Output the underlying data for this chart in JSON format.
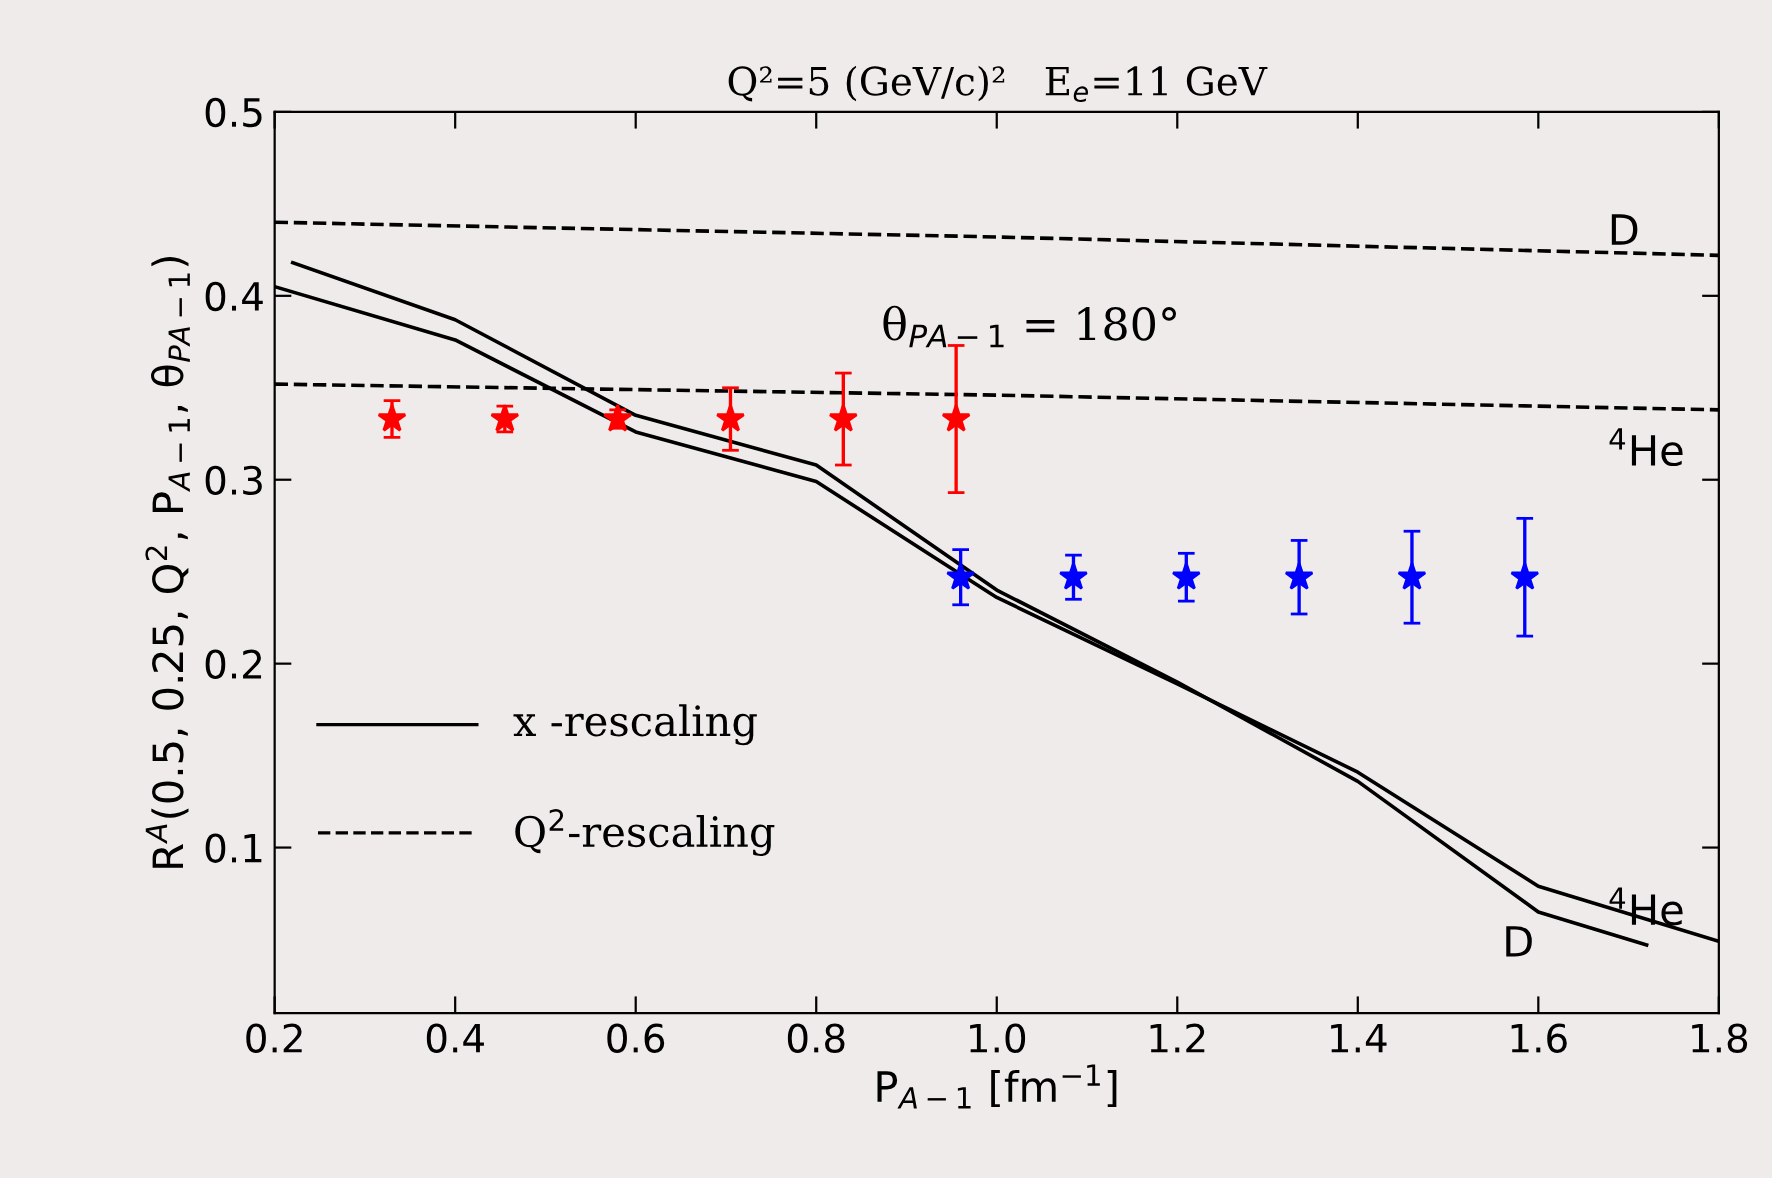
{
  "chart_data": {
    "type": "line",
    "title": "Q²=5 (GeV/c)²   E$_{e}$=11 GeV",
    "xlabel": "P$_{A−1}$ [fm$^{−1}$]",
    "ylabel": "R$^{A}$(0.5, 0.25, Q$^{2}$, P$_{A−1}$, θ$_{PA−1}$)",
    "xlim": [
      0.2,
      1.8
    ],
    "xticks": [
      0.2,
      0.4,
      0.6,
      0.8,
      {
        "value": 1.0,
        "label": "1.0"
      },
      1.2,
      1.4,
      1.6,
      1.8
    ],
    "ylim": [
      0.01,
      0.5
    ],
    "yticks": [
      0.1,
      0.2,
      0.3,
      0.4,
      0.5
    ],
    "grid": false,
    "series": [
      {
        "name": "D",
        "line_style": "solid",
        "color": "#000000",
        "x": [
          0.22,
          0.4,
          0.6,
          0.8,
          1.0,
          1.2,
          1.4,
          1.6,
          1.72
        ],
        "values": [
          0.418,
          0.387,
          0.335,
          0.308,
          0.24,
          0.19,
          0.136,
          0.065,
          0.047
        ]
      },
      {
        "name": "$^{4}$He",
        "line_style": "solid",
        "color": "#000000",
        "x": [
          0.2,
          0.4,
          0.6,
          0.8,
          1.0,
          1.2,
          1.4,
          1.6,
          1.8
        ],
        "values": [
          0.405,
          0.376,
          0.326,
          0.299,
          0.236,
          0.189,
          0.141,
          0.079,
          0.049
        ]
      },
      {
        "name": "D",
        "line_style": "dashed",
        "color": "#000000",
        "x": [
          0.2,
          1.0,
          1.8
        ],
        "values": [
          0.44,
          0.432,
          0.422
        ]
      },
      {
        "name": "$^{4}$He",
        "line_style": "dashed",
        "color": "#000000",
        "x": [
          0.2,
          1.0,
          1.8
        ],
        "values": [
          0.352,
          0.346,
          0.338
        ]
      },
      {
        "type": "scatter",
        "marker": "star",
        "color": "#ff0000",
        "x": [
          0.33,
          0.455,
          0.58,
          0.705,
          0.83,
          0.955
        ],
        "values": [
          0.333,
          0.333,
          0.333,
          0.333,
          0.333,
          0.333
        ],
        "errors": [
          0.01,
          0.007,
          0.005,
          0.017,
          0.025,
          0.04
        ]
      },
      {
        "type": "scatter",
        "marker": "star",
        "color": "#0000ff",
        "x": [
          0.96,
          1.085,
          1.21,
          1.335,
          1.46,
          1.585
        ],
        "values": [
          0.247,
          0.247,
          0.247,
          0.247,
          0.247,
          0.247
        ],
        "errors": [
          0.015,
          0.012,
          0.013,
          0.02,
          0.025,
          0.032
        ]
      }
    ],
    "annotations": [
      "x -rescaling",
      "Q$^{2}$-rescaling",
      "θ$_{PA−1}$ = 180°"
    ]
  }
}
